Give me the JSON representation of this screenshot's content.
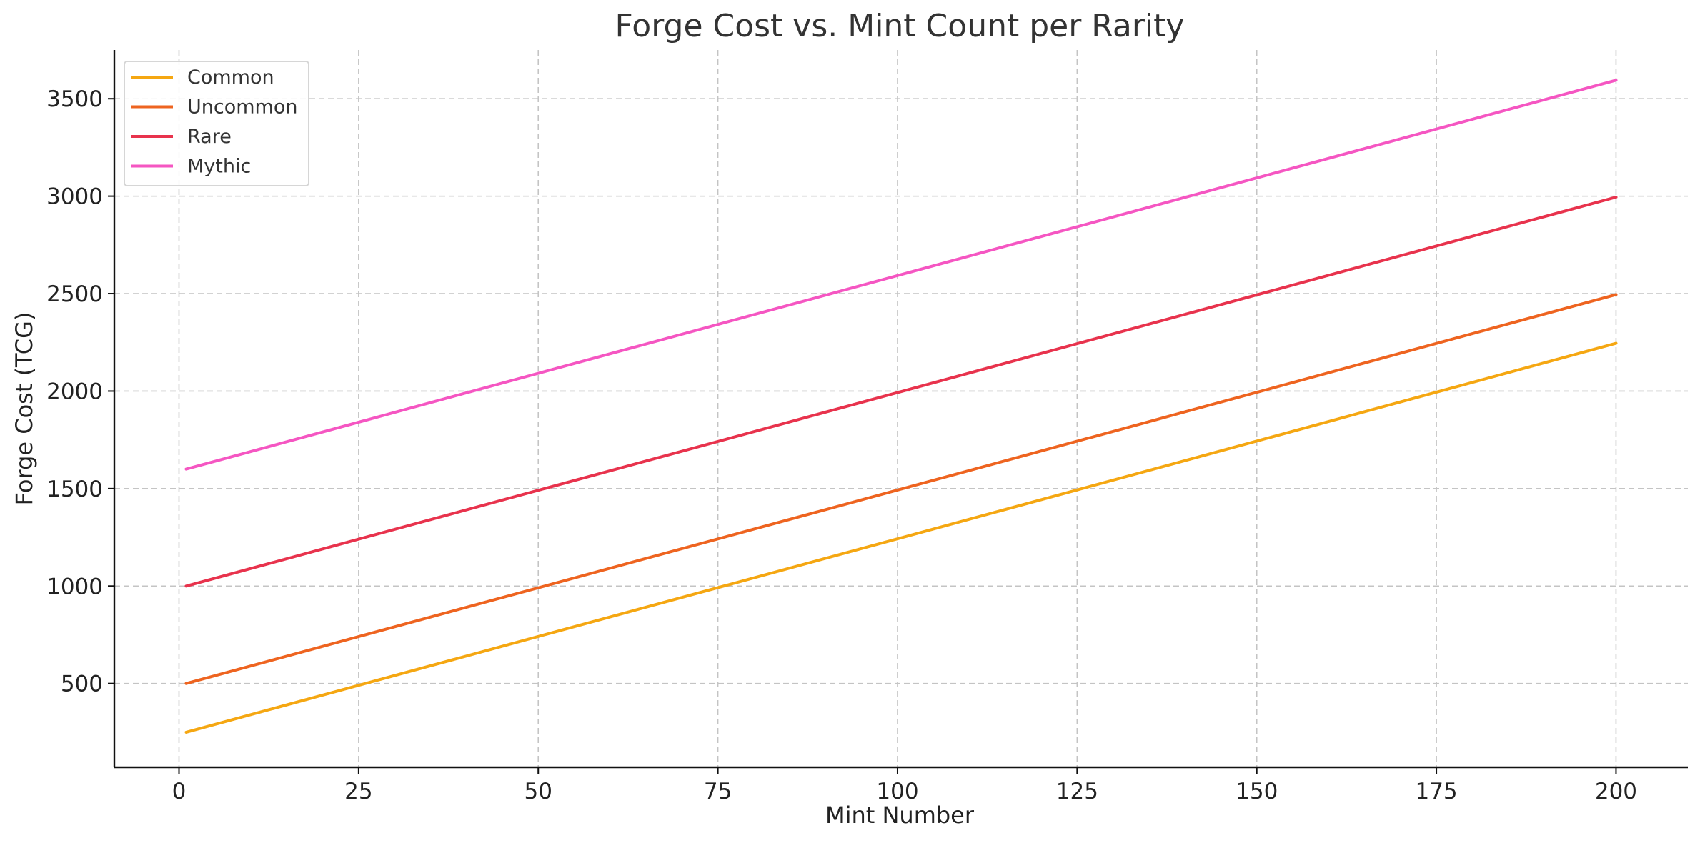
{
  "chart_data": {
    "type": "line",
    "title": "Forge Cost vs. Mint Count per Rarity",
    "xlabel": "Mint Number",
    "ylabel": "Forge Cost (TCG)",
    "xlim": [
      -9,
      210
    ],
    "ylim": [
      70,
      3750
    ],
    "xticks": [
      0,
      25,
      50,
      75,
      100,
      125,
      150,
      175,
      200
    ],
    "yticks": [
      500,
      1000,
      1500,
      2000,
      2500,
      3000,
      3500
    ],
    "grid": true,
    "legend_position": "top-left",
    "series": [
      {
        "name": "Common",
        "color": "#f5a712",
        "x": [
          1,
          200
        ],
        "values": [
          250,
          2245
        ]
      },
      {
        "name": "Uncommon",
        "color": "#ee6420",
        "x": [
          1,
          200
        ],
        "values": [
          500,
          2495
        ]
      },
      {
        "name": "Rare",
        "color": "#e8334d",
        "x": [
          1,
          200
        ],
        "values": [
          1000,
          2995
        ]
      },
      {
        "name": "Mythic",
        "color": "#f556c2",
        "x": [
          1,
          200
        ],
        "values": [
          1600,
          3595
        ]
      }
    ]
  }
}
